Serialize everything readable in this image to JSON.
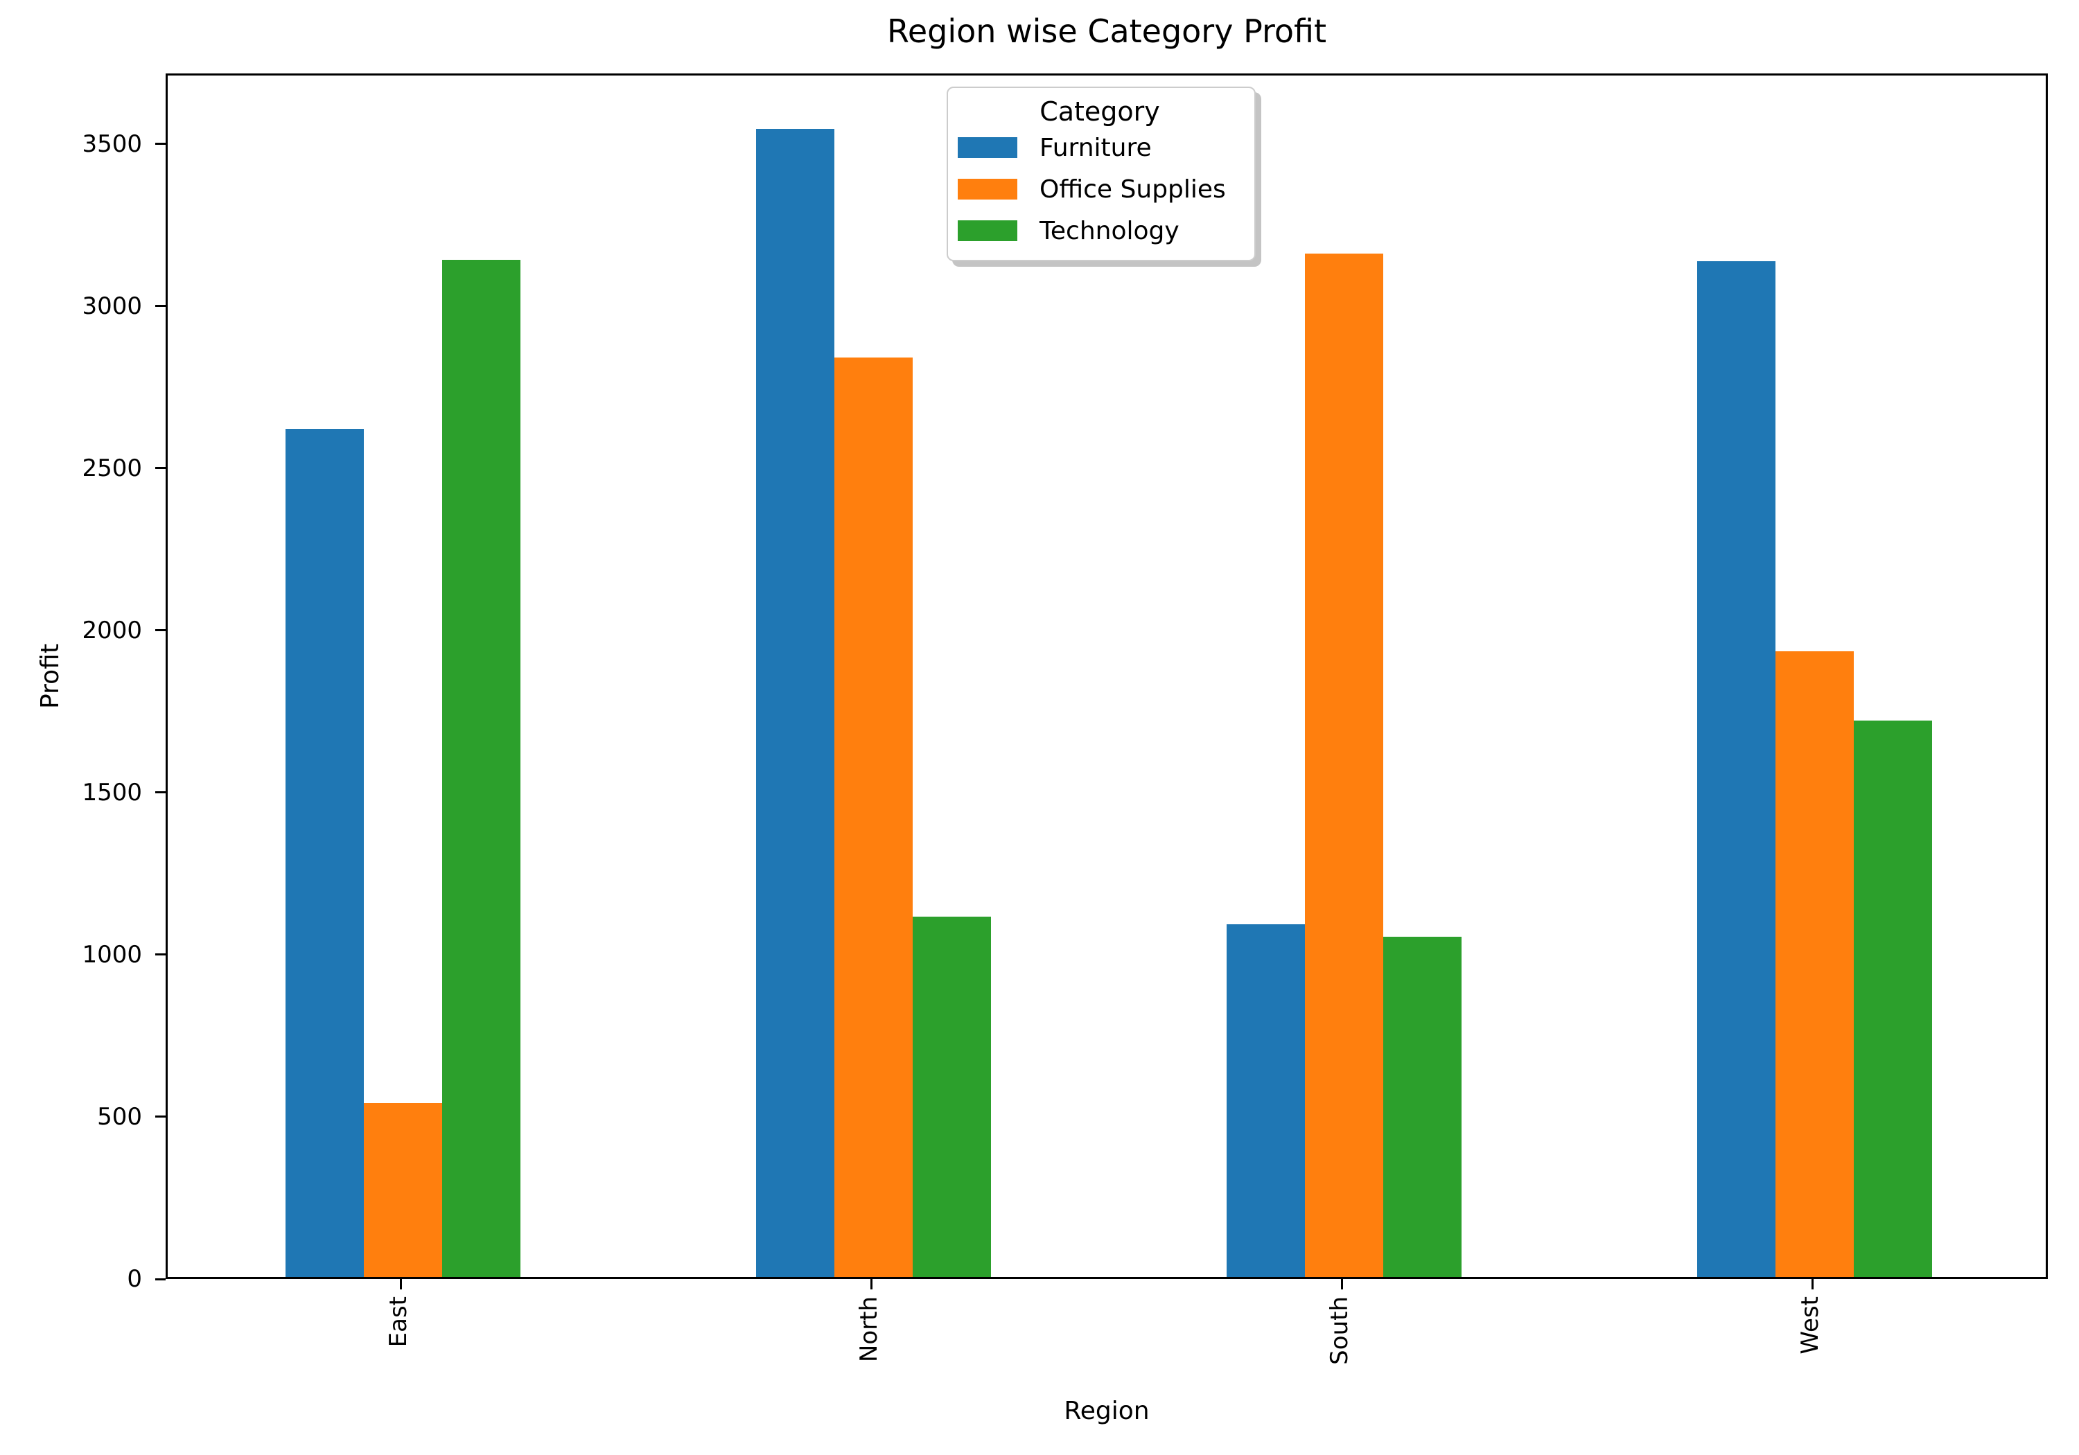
{
  "title": "Region wise Category Profit",
  "chart_data": {
    "type": "bar",
    "title": "Region wise Category Profit",
    "xlabel": "Region",
    "ylabel": "Profit",
    "categories": [
      "East",
      "North",
      "South",
      "West"
    ],
    "series": [
      {
        "name": "Furniture",
        "color": "#1f77b4",
        "values": [
          2615,
          3540,
          1088,
          3131
        ]
      },
      {
        "name": "Office Supplies",
        "color": "#ff7f0e",
        "values": [
          536,
          2835,
          3155,
          1930
        ]
      },
      {
        "name": "Technology",
        "color": "#2ca02c",
        "values": [
          3135,
          1110,
          1049,
          1715
        ]
      }
    ],
    "yticks": [
      0,
      500,
      1000,
      1500,
      2000,
      2500,
      3000,
      3500
    ],
    "ylim": [
      0,
      3717
    ],
    "xtick_rotation": 90,
    "grid": false,
    "legend": {
      "title": "Category",
      "position": "upper center",
      "entries": [
        "Furniture",
        "Office Supplies",
        "Technology"
      ]
    }
  }
}
